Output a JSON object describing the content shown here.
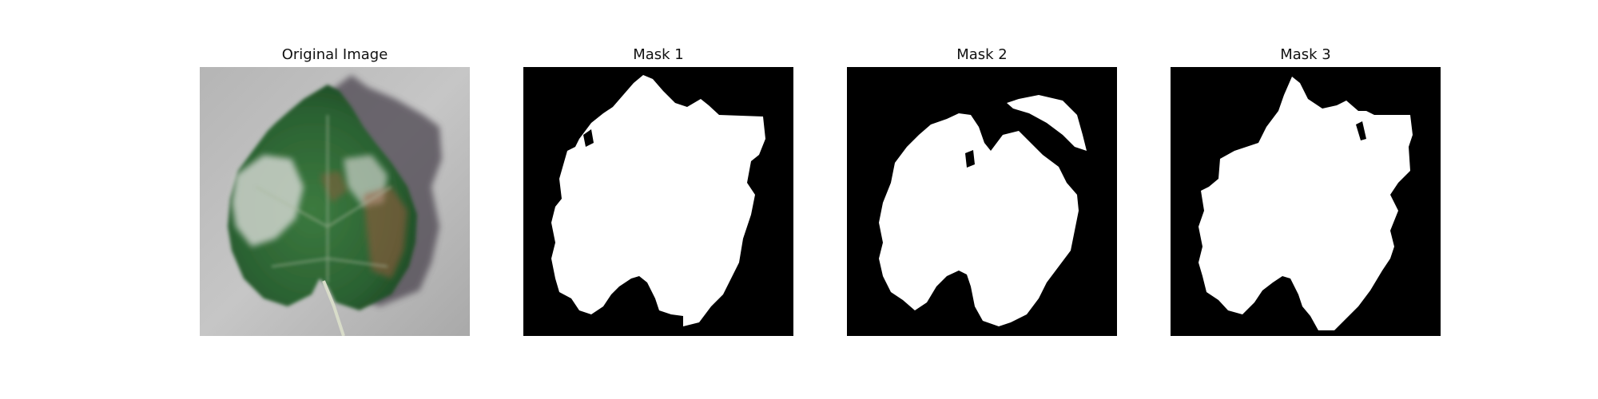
{
  "figure": {
    "panels": [
      {
        "title": "Original Image",
        "kind": "photo"
      },
      {
        "title": "Mask 1",
        "kind": "mask"
      },
      {
        "title": "Mask 2",
        "kind": "mask"
      },
      {
        "title": "Mask 3",
        "kind": "mask"
      }
    ]
  },
  "colors": {
    "background": "#ffffff",
    "mask_bg": "#000000",
    "mask_fg": "#ffffff",
    "leaf_green": "#2f6b35",
    "leaf_dark": "#1f4a25",
    "leaf_light": "#c9cfc8",
    "rust": "#9c5a3c",
    "photo_bg": "#bdbdbd",
    "shadow": "#4b4450"
  }
}
